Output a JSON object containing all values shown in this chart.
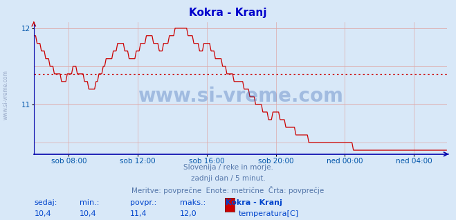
{
  "title": "Kokra - Kranj",
  "title_color": "#0000cc",
  "bg_color": "#d8e8f8",
  "plot_bg_color": "#d8e8f8",
  "line_color": "#cc0000",
  "avg_line_color": "#cc0000",
  "avg_value": 11.4,
  "ymin": 10.4,
  "ymax": 12.0,
  "yticks": [
    11,
    12
  ],
  "tick_color": "#0055aa",
  "grid_color": "#e8aaaa",
  "grid_color2": "#aaaadd",
  "watermark_text": "www.si-vreme.com",
  "watermark_color": "#2255aa",
  "watermark_alpha": 0.3,
  "footer_line1": "Slovenija / reke in morje.",
  "footer_line2": "zadnji dan / 5 minut.",
  "footer_line3": "Meritve: povprečne  Enote: metrične  Črta: povprečje",
  "footer_color": "#5577aa",
  "legend_labels": [
    "sedaj:",
    "min.:",
    "povpr.:",
    "maks.:",
    "Kokra - Kranj"
  ],
  "legend_values": [
    "10,4",
    "10,4",
    "11,4",
    "12,0"
  ],
  "legend_sensor": "temperatura[C]",
  "legend_color": "#0044cc",
  "side_label": "www.si-vreme.com",
  "xtick_labels": [
    "sob 08:00",
    "sob 12:00",
    "sob 16:00",
    "sob 20:00",
    "ned 00:00",
    "ned 04:00"
  ],
  "total_points": 288,
  "ylim_low": 10.35,
  "ylim_high": 12.08,
  "waypoints": [
    [
      0,
      11.9
    ],
    [
      3,
      11.8
    ],
    [
      6,
      11.7
    ],
    [
      9,
      11.6
    ],
    [
      12,
      11.5
    ],
    [
      16,
      11.4
    ],
    [
      20,
      11.3
    ],
    [
      25,
      11.4
    ],
    [
      28,
      11.5
    ],
    [
      32,
      11.4
    ],
    [
      36,
      11.3
    ],
    [
      40,
      11.2
    ],
    [
      44,
      11.3
    ],
    [
      48,
      11.5
    ],
    [
      52,
      11.6
    ],
    [
      56,
      11.7
    ],
    [
      60,
      11.8
    ],
    [
      64,
      11.7
    ],
    [
      68,
      11.6
    ],
    [
      72,
      11.7
    ],
    [
      76,
      11.8
    ],
    [
      80,
      11.9
    ],
    [
      84,
      11.8
    ],
    [
      88,
      11.7
    ],
    [
      92,
      11.8
    ],
    [
      96,
      11.9
    ],
    [
      100,
      12.0
    ],
    [
      104,
      12.0
    ],
    [
      108,
      11.9
    ],
    [
      112,
      11.8
    ],
    [
      116,
      11.7
    ],
    [
      120,
      11.8
    ],
    [
      124,
      11.7
    ],
    [
      128,
      11.6
    ],
    [
      132,
      11.5
    ],
    [
      136,
      11.4
    ],
    [
      140,
      11.3
    ],
    [
      144,
      11.3
    ],
    [
      148,
      11.2
    ],
    [
      152,
      11.1
    ],
    [
      156,
      11.0
    ],
    [
      160,
      10.9
    ],
    [
      164,
      10.8
    ],
    [
      168,
      10.9
    ],
    [
      172,
      10.8
    ],
    [
      176,
      10.7
    ],
    [
      180,
      10.7
    ],
    [
      184,
      10.6
    ],
    [
      188,
      10.6
    ],
    [
      192,
      10.5
    ],
    [
      196,
      10.5
    ],
    [
      200,
      10.5
    ],
    [
      204,
      10.5
    ],
    [
      208,
      10.5
    ],
    [
      212,
      10.5
    ],
    [
      216,
      10.5
    ],
    [
      220,
      10.5
    ],
    [
      224,
      10.4
    ],
    [
      228,
      10.4
    ],
    [
      232,
      10.4
    ],
    [
      236,
      10.4
    ],
    [
      240,
      10.4
    ],
    [
      244,
      10.4
    ],
    [
      248,
      10.4
    ],
    [
      252,
      10.4
    ],
    [
      256,
      10.4
    ],
    [
      260,
      10.4
    ],
    [
      264,
      10.4
    ],
    [
      268,
      10.4
    ],
    [
      272,
      10.4
    ],
    [
      276,
      10.4
    ],
    [
      280,
      10.4
    ],
    [
      284,
      10.4
    ],
    [
      287,
      10.4
    ]
  ]
}
